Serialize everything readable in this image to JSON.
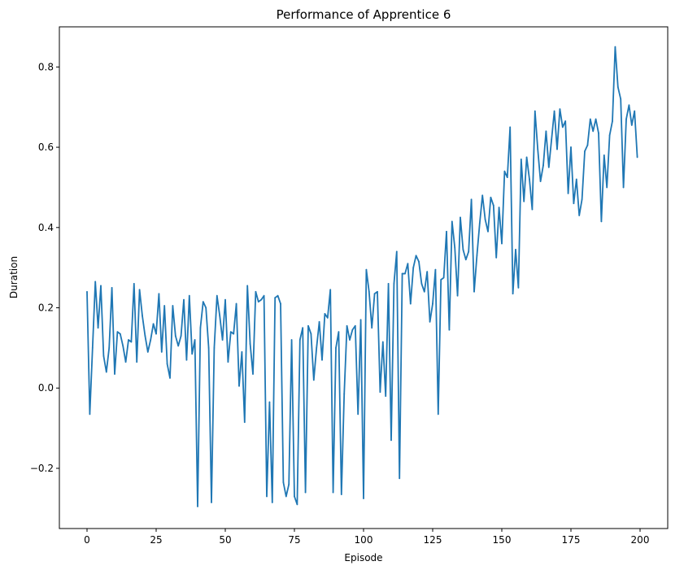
{
  "chart_data": {
    "type": "line",
    "title": "Performance of Apprentice 6",
    "xlabel": "Episode",
    "ylabel": "Duration",
    "xlim": [
      -10,
      210
    ],
    "ylim": [
      -0.35,
      0.9
    ],
    "xticks": [
      0,
      25,
      50,
      75,
      100,
      125,
      150,
      175,
      200
    ],
    "yticks": [
      -0.2,
      0.0,
      0.2,
      0.4,
      0.6,
      0.8
    ],
    "ytick_labels": [
      "−0.2",
      "0.0",
      "0.2",
      "0.4",
      "0.6",
      "0.8"
    ],
    "grid": false,
    "series": [
      {
        "color": "#1f77b4",
        "values": [
          0.24,
          -0.065,
          0.1,
          0.265,
          0.15,
          0.255,
          0.08,
          0.04,
          0.1,
          0.25,
          0.035,
          0.14,
          0.135,
          0.105,
          0.065,
          0.12,
          0.115,
          0.26,
          0.065,
          0.245,
          0.18,
          0.13,
          0.09,
          0.12,
          0.16,
          0.135,
          0.235,
          0.09,
          0.205,
          0.06,
          0.025,
          0.205,
          0.13,
          0.105,
          0.13,
          0.22,
          0.07,
          0.23,
          0.085,
          0.12,
          -0.295,
          0.15,
          0.215,
          0.2,
          0.1,
          -0.285,
          0.1,
          0.23,
          0.18,
          0.12,
          0.22,
          0.065,
          0.14,
          0.135,
          0.21,
          0.005,
          0.09,
          -0.085,
          0.255,
          0.11,
          0.035,
          0.24,
          0.215,
          0.22,
          0.23,
          -0.27,
          -0.035,
          -0.285,
          0.225,
          0.23,
          0.21,
          -0.235,
          -0.27,
          -0.24,
          0.12,
          -0.27,
          -0.29,
          0.12,
          0.15,
          -0.26,
          0.155,
          0.135,
          0.02,
          0.1,
          0.165,
          0.07,
          0.185,
          0.175,
          0.245,
          -0.26,
          0.1,
          0.14,
          -0.265,
          -0.015,
          0.155,
          0.12,
          0.145,
          0.155,
          -0.065,
          0.17,
          -0.275,
          0.295,
          0.24,
          0.15,
          0.235,
          0.24,
          -0.01,
          0.115,
          -0.02,
          0.26,
          -0.13,
          0.26,
          0.34,
          -0.225,
          0.285,
          0.285,
          0.31,
          0.21,
          0.3,
          0.33,
          0.315,
          0.26,
          0.24,
          0.29,
          0.165,
          0.21,
          0.295,
          -0.065,
          0.27,
          0.275,
          0.39,
          0.145,
          0.415,
          0.35,
          0.23,
          0.425,
          0.345,
          0.32,
          0.34,
          0.47,
          0.24,
          0.33,
          0.41,
          0.48,
          0.42,
          0.39,
          0.475,
          0.455,
          0.325,
          0.45,
          0.36,
          0.54,
          0.525,
          0.65,
          0.235,
          0.345,
          0.25,
          0.57,
          0.465,
          0.575,
          0.52,
          0.445,
          0.69,
          0.595,
          0.515,
          0.555,
          0.64,
          0.55,
          0.62,
          0.69,
          0.595,
          0.695,
          0.65,
          0.665,
          0.485,
          0.6,
          0.46,
          0.52,
          0.43,
          0.47,
          0.59,
          0.605,
          0.67,
          0.64,
          0.67,
          0.635,
          0.415,
          0.58,
          0.5,
          0.63,
          0.665,
          0.85,
          0.75,
          0.72,
          0.5,
          0.67,
          0.705,
          0.655,
          0.69,
          0.575
        ]
      }
    ]
  }
}
